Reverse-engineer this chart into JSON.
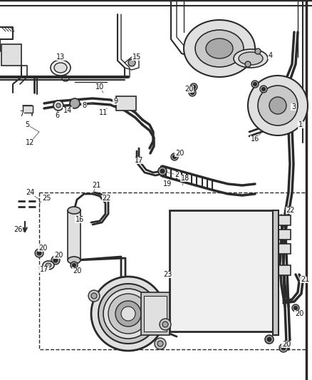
{
  "bg_color": "#ffffff",
  "line_color": "#2a2a2a",
  "fig_width": 4.38,
  "fig_height": 5.33,
  "dpi": 100,
  "gray1": "#c8c8c8",
  "gray2": "#e0e0e0",
  "gray3": "#a8a8a8",
  "gray4": "#d4d4d4",
  "gray5": "#f0f0f0",
  "condenser_hatch": "#b0b0b0"
}
